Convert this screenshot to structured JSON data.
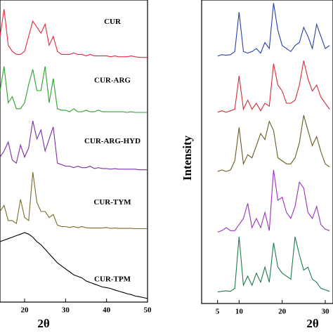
{
  "chart_data": [
    {
      "type": "line",
      "xlabel": "2θ",
      "x": [
        14,
        15,
        16,
        17,
        18,
        19,
        20,
        21,
        22,
        23,
        24,
        25,
        26,
        27,
        28,
        29,
        30,
        31,
        32,
        33,
        34,
        35,
        36,
        37,
        38,
        39,
        40,
        41,
        42,
        43,
        44,
        45,
        46,
        47,
        48,
        49,
        50
      ],
      "xlim": [
        14,
        50
      ],
      "xticks": [
        20,
        30,
        40,
        50
      ],
      "ylim": [
        0,
        100
      ],
      "series": [
        {
          "name": "CUR",
          "color": "#e8263d",
          "values": [
            88,
            97,
            85,
            83,
            82,
            82,
            83,
            88,
            93,
            91,
            89,
            92,
            85,
            88,
            83,
            82,
            82,
            82,
            82.5,
            82,
            82,
            81.5,
            82,
            81.5,
            81.5,
            81.5,
            81.5,
            81.2,
            81.5,
            81.2,
            81.2,
            81.2,
            81.5,
            81.2,
            81,
            81,
            81
          ]
        },
        {
          "name": "CUR-ARG",
          "color": "#2ca02c",
          "values": [
            70,
            78,
            66,
            68,
            64,
            64,
            66,
            72,
            77,
            70,
            70,
            78,
            66,
            74,
            64,
            63.5,
            63.5,
            63,
            64,
            63,
            63,
            63.5,
            63,
            63,
            63.5,
            63,
            63,
            63,
            63,
            63,
            63,
            62.8,
            63,
            62.8,
            62.8,
            62.8,
            62.8
          ]
        },
        {
          "name": "CUR-ARG-HYD",
          "color": "#7b2fa8",
          "values": [
            48,
            50,
            53,
            47,
            46,
            52,
            48,
            51,
            60,
            54,
            57,
            50,
            54,
            58,
            46,
            45.5,
            45,
            45,
            44.5,
            45,
            44.5,
            44.5,
            45,
            44.2,
            44.5,
            44.2,
            44.2,
            44,
            44.2,
            44,
            44,
            44,
            44,
            44,
            43.8,
            43.8,
            43.8
          ]
        },
        {
          "name": "CUR-TYM",
          "color": "#7a6a2a",
          "values": [
            30,
            32,
            27,
            27,
            26,
            34,
            28,
            27,
            43,
            33,
            30,
            30,
            28,
            29,
            25.5,
            25,
            25,
            24.7,
            25,
            24.6,
            25,
            24.6,
            24.5,
            24.5,
            24.5,
            24.5,
            24.7,
            24.4,
            24.5,
            24.4,
            24.4,
            24.4,
            24.4,
            24.3,
            24.3,
            24.3,
            24.3
          ]
        },
        {
          "name": "CUR-TPM",
          "color": "#000000",
          "values": [
            20,
            20.5,
            21,
            21.5,
            22,
            22.5,
            23,
            22.5,
            21.5,
            20,
            19,
            17.5,
            16,
            14.5,
            13,
            12,
            11,
            10,
            9,
            8.5,
            8,
            7,
            6.5,
            6,
            5.5,
            5,
            4.8,
            4.5,
            4,
            3.6,
            3.2,
            2.8,
            2.5,
            2,
            1.8,
            1.5,
            1.2
          ]
        }
      ]
    },
    {
      "type": "line",
      "xlabel": "2θ",
      "ylabel": "Intensity",
      "x": [
        5,
        6,
        7,
        8,
        9,
        10,
        11,
        12,
        13,
        14,
        15,
        16,
        17,
        18,
        19,
        20,
        21,
        22,
        23,
        24,
        25,
        26,
        27,
        28,
        29,
        30,
        31
      ],
      "xlim": [
        1.3,
        31.8
      ],
      "xticks": [
        5,
        10,
        20,
        30
      ],
      "ylim": [
        0,
        100
      ],
      "series": [
        {
          "color": "#2b3ea8",
          "values": [
            81.5,
            82,
            81.8,
            82,
            83,
            96,
            83,
            82.5,
            83,
            84,
            82.5,
            86,
            84,
            99,
            90,
            85,
            84,
            83,
            85,
            86,
            91,
            88,
            84,
            92,
            88,
            84,
            85
          ]
        },
        {
          "color": "#d42a3a",
          "values": [
            63,
            63.5,
            63,
            63.5,
            64,
            75,
            64,
            67,
            64,
            66,
            63.5,
            66,
            65,
            79,
            72,
            70,
            66,
            66,
            67,
            72,
            80,
            74,
            70,
            72,
            68,
            66,
            64
          ]
        },
        {
          "color": "#6b5a22",
          "values": [
            43.5,
            44,
            43.5,
            44,
            47,
            58,
            46,
            49,
            48,
            52,
            56,
            54,
            60,
            57,
            48,
            47,
            46,
            46,
            48,
            53,
            62,
            57,
            52,
            55,
            50,
            46,
            45
          ]
        },
        {
          "color": "#9a2fc0",
          "values": [
            23.5,
            24,
            25,
            24,
            24,
            26,
            28,
            33,
            25,
            28,
            25,
            30,
            24,
            44,
            34,
            35,
            30,
            28,
            32,
            40,
            38,
            30,
            28,
            32,
            26,
            24.5,
            24
          ]
        },
        {
          "color": "#1f7a4a",
          "values": [
            3.8,
            4,
            4.2,
            4,
            5,
            22,
            6,
            9,
            6,
            10,
            7,
            12,
            7,
            20,
            12,
            10,
            9,
            8,
            22,
            16,
            11,
            12,
            8,
            7,
            5,
            4.5,
            4
          ]
        }
      ]
    }
  ]
}
